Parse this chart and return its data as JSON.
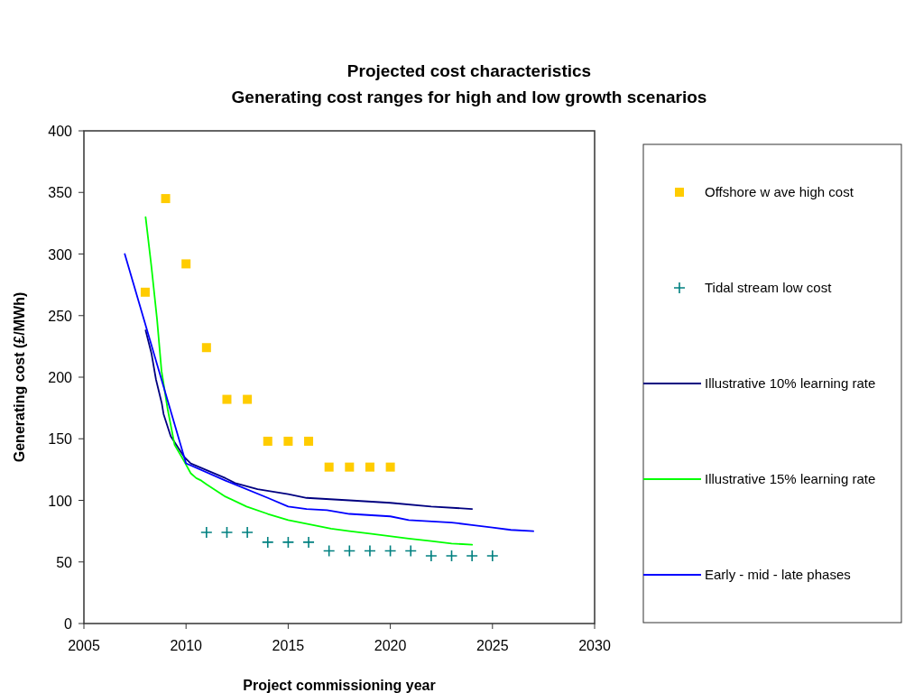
{
  "chart_data": {
    "type": "line",
    "title": "Projected cost characteristics",
    "subtitle": "Generating cost ranges for high and low growth scenarios",
    "xlabel": "Project commissioning year",
    "ylabel": "Generating cost (£/MWh)",
    "xlim": [
      2005,
      2030
    ],
    "xticks": [
      2005,
      2010,
      2015,
      2020,
      2025,
      2030
    ],
    "ylim": [
      0,
      400
    ],
    "yticks": [
      0,
      50,
      100,
      150,
      200,
      250,
      300,
      350,
      400
    ],
    "grid": false,
    "legend": "right",
    "series": [
      {
        "name": "Offshore w ave high cost",
        "type": "scatter",
        "marker": "square",
        "color": "#ffcc00",
        "x": [
          2008,
          2009,
          2010,
          2011,
          2012,
          2013,
          2014,
          2015,
          2016,
          2017,
          2018,
          2019,
          2020
        ],
        "values": [
          269,
          345,
          292,
          224,
          182,
          182,
          148,
          148,
          148,
          127,
          127,
          127,
          127
        ]
      },
      {
        "name": "Tidal stream low  cost",
        "type": "scatter",
        "marker": "cross",
        "color": "#008080",
        "x": [
          2011,
          2012,
          2013,
          2014,
          2015,
          2016,
          2017,
          2018,
          2019,
          2020,
          2021,
          2022,
          2023,
          2024,
          2025
        ],
        "values": [
          74,
          74,
          74,
          66,
          66,
          66,
          59,
          59,
          59,
          59,
          59,
          55,
          55,
          55,
          55
        ]
      },
      {
        "name": "Illustrative 10% learning rate",
        "type": "line",
        "marker": "none",
        "color": "#000080",
        "x": [
          2008.02,
          2008.31,
          2008.53,
          2008.81,
          2008.9,
          2009.25,
          2009.92,
          2010.23,
          2011.93,
          2012.4,
          2013.5,
          2015,
          2015.9,
          2018,
          2020,
          2022,
          2024
        ],
        "values": [
          238,
          219,
          198,
          179,
          170,
          152,
          135,
          130,
          118,
          114,
          109,
          105,
          102,
          100,
          98,
          95,
          93
        ]
      },
      {
        "name": "Illustrative 15% learning rate",
        "type": "line",
        "marker": "none",
        "color": "#00ff00",
        "x": [
          2008.02,
          2008.31,
          2008.58,
          2008.8,
          2009.1,
          2009.44,
          2009.9,
          2010.23,
          2010.5,
          2010.75,
          2011,
          2011.93,
          2012.96,
          2014,
          2015,
          2017.1,
          2018,
          2019,
          2020.9,
          2022,
          2023,
          2024
        ],
        "values": [
          330,
          289,
          247,
          205,
          174,
          145,
          132,
          122,
          118,
          116,
          113,
          103,
          95,
          89,
          84,
          77,
          75,
          73,
          69,
          67,
          65,
          64
        ]
      },
      {
        "name": "Early - mid - late phases",
        "type": "line",
        "marker": "none",
        "color": "#0000ff",
        "x": [
          2007,
          2010,
          2011.93,
          2014,
          2015,
          2015.9,
          2016.9,
          2018,
          2020,
          2020.9,
          2023,
          2024,
          2025,
          2025.9,
          2027
        ],
        "values": [
          300,
          130,
          116,
          102,
          95,
          93,
          92,
          89,
          87,
          84,
          82,
          80,
          78,
          76,
          75
        ]
      }
    ]
  }
}
